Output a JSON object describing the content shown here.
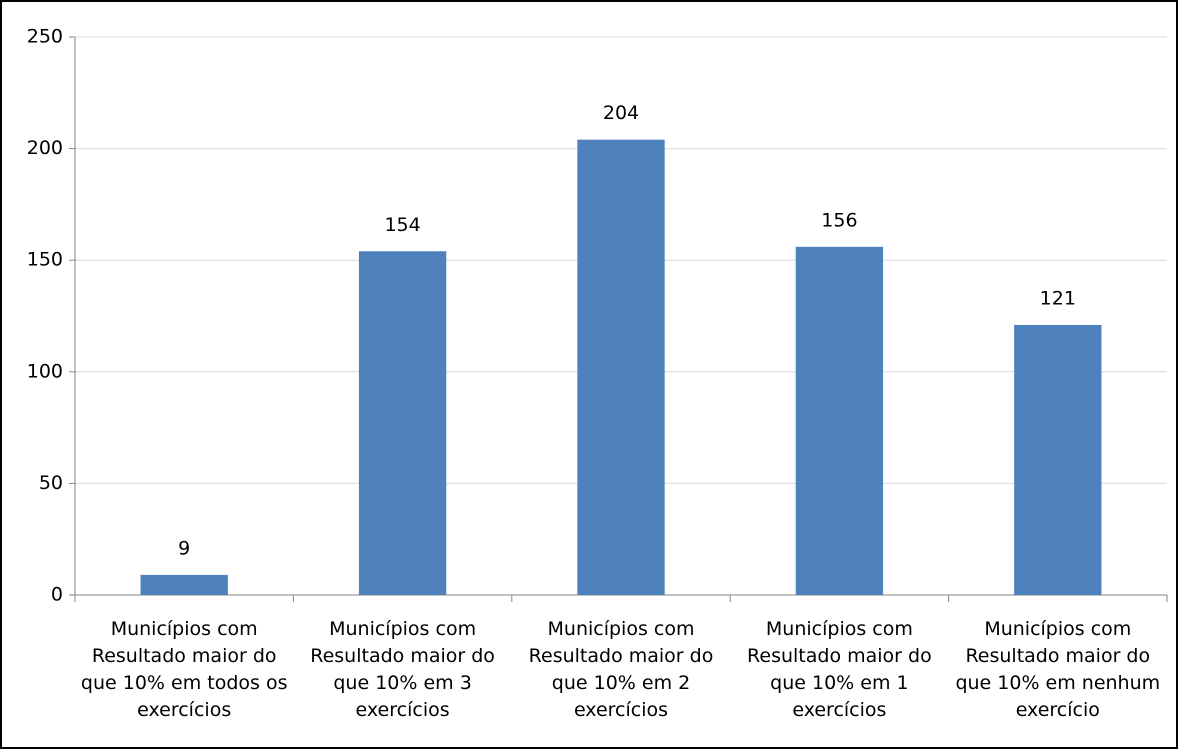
{
  "chart_data": {
    "type": "bar",
    "categories": [
      "Municípios com Resultado maior do que 10% em todos os exercícios",
      "Municípios com Resultado maior do que 10% em 3 exercícios",
      "Municípios com Resultado maior do que 10% em 2 exercícios",
      "Municípios com Resultado maior do que 10% em 1 exercícios",
      "Municípios com Resultado maior do que 10% em nenhum exercício"
    ],
    "values": [
      9,
      154,
      204,
      156,
      121
    ],
    "color": "#4f81bd",
    "ylim": [
      0,
      250
    ],
    "yticks": [
      0,
      50,
      100,
      150,
      200,
      250
    ],
    "grid": true
  }
}
